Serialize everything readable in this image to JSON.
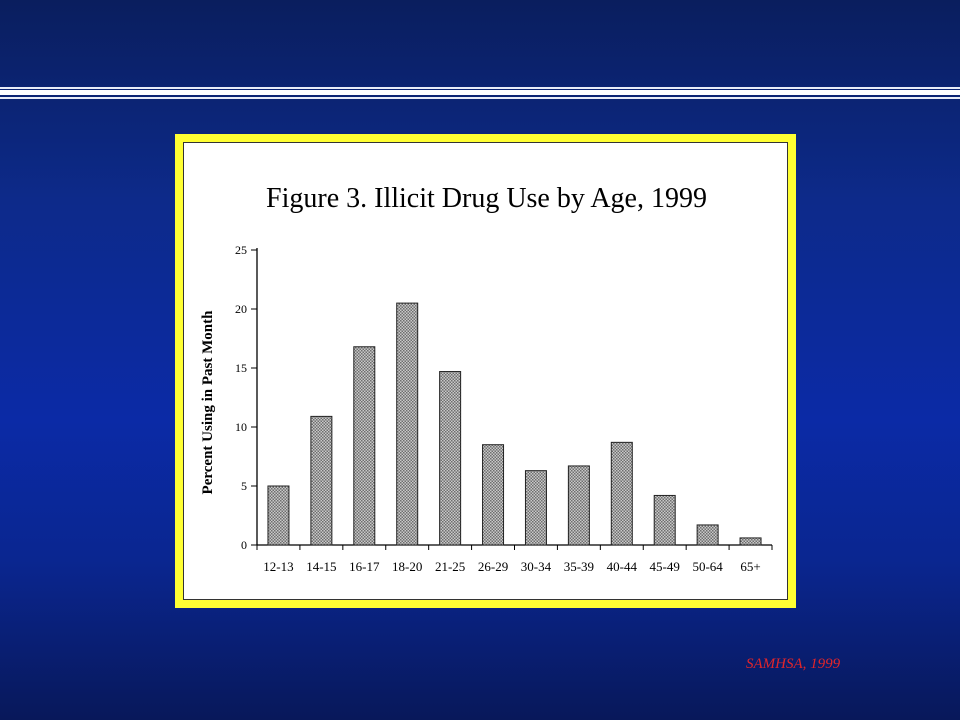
{
  "slide": {
    "source": "SAMHSA, 1999"
  },
  "colors": {
    "background": "#0b2aa6",
    "frame": "#ffff33",
    "bar_fill": "#9a9a9a",
    "source_text": "#e0252b"
  },
  "chart_data": {
    "type": "bar",
    "title": "Figure 3.  Illicit Drug Use by Age, 1999",
    "xlabel": "",
    "ylabel": "Percent Using in Past Month",
    "categories": [
      "12-13",
      "14-15",
      "16-17",
      "18-20",
      "21-25",
      "26-29",
      "30-34",
      "35-39",
      "40-44",
      "45-49",
      "50-64",
      "65+"
    ],
    "values": [
      5.0,
      10.9,
      16.8,
      20.5,
      14.7,
      8.5,
      6.3,
      6.7,
      8.7,
      4.2,
      1.7,
      0.6
    ],
    "ylim": [
      0,
      25
    ],
    "yticks": [
      0,
      5,
      10,
      15,
      20,
      25
    ],
    "grid": false,
    "legend": "none"
  }
}
